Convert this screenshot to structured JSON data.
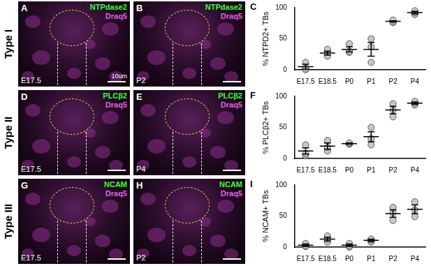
{
  "row_labels": [
    "Type I",
    "Type II",
    "Type III"
  ],
  "image_panels": [
    {
      "letter": "A",
      "stain": "NTPdase2",
      "counterstain": "Draq5",
      "age": "E17.5",
      "scale_bar": "10um"
    },
    {
      "letter": "B",
      "stain": "NTPdase2",
      "counterstain": "Draq5",
      "age": "P2"
    },
    {
      "letter": "D",
      "stain": "PLCβ2",
      "counterstain": "Draq5",
      "age": "E17.5"
    },
    {
      "letter": "E",
      "stain": "PLCβ2",
      "counterstain": "Draq5",
      "age": "P4"
    },
    {
      "letter": "G",
      "stain": "NCAM",
      "counterstain": "Draq5",
      "age": "E17.5"
    },
    {
      "letter": "H",
      "stain": "NCAM",
      "counterstain": "Draq5",
      "age": "P2"
    }
  ],
  "chart_data": [
    {
      "type": "scatter",
      "panel": "C",
      "y_label": "% NTPD2+ TBs",
      "categories": [
        "E17.5",
        "E18.5",
        "P0",
        "P1",
        "P2",
        "P4"
      ],
      "values": [
        5,
        27,
        33,
        33,
        78,
        92
      ],
      "sem": [
        4,
        3,
        4,
        11,
        1,
        2
      ],
      "points": [
        [
          0,
          3,
          12
        ],
        [
          22,
          28,
          33
        ],
        [
          28,
          30,
          42
        ],
        [
          12,
          37,
          50
        ],
        [
          76,
          77,
          80
        ],
        [
          89,
          92,
          95
        ]
      ],
      "color": "#c8c8c8",
      "marker": "circle",
      "ylim": [
        0,
        100
      ],
      "yticks": [
        0,
        50,
        100
      ],
      "grid": false
    },
    {
      "type": "scatter",
      "panel": "F",
      "y_label": "% PLCβ2+ TBs",
      "categories": [
        "E17.5",
        "E18.5",
        "P0",
        "P1",
        "P2",
        "P4"
      ],
      "values": [
        12,
        20,
        24,
        35,
        78,
        89
      ],
      "sem": [
        5,
        5,
        1,
        8,
        6,
        2
      ],
      "points": [
        [
          5,
          8,
          22
        ],
        [
          12,
          18,
          29
        ],
        [
          23,
          24,
          25
        ],
        [
          22,
          32,
          50
        ],
        [
          67,
          78,
          88
        ],
        [
          86,
          89,
          92
        ]
      ],
      "color": "#c8c8c8",
      "marker": "circle",
      "ylim": [
        0,
        100
      ],
      "yticks": [
        0,
        50,
        100
      ],
      "grid": false
    },
    {
      "type": "scatter",
      "panel": "I",
      "y_label": "% NCAM+ TBs",
      "categories": [
        "E17.5",
        "E18.5",
        "P0",
        "P1",
        "P2",
        "P4"
      ],
      "values": [
        3,
        13,
        3,
        11,
        54,
        61
      ],
      "sem": [
        2,
        3,
        2,
        2,
        6,
        7
      ],
      "points": [
        [
          1,
          2,
          6
        ],
        [
          8,
          13,
          18
        ],
        [
          0,
          2,
          6
        ],
        [
          8,
          11,
          13
        ],
        [
          43,
          55,
          64
        ],
        [
          49,
          60,
          73
        ]
      ],
      "color": "#c8c8c8",
      "marker": "circle",
      "ylim": [
        0,
        100
      ],
      "yticks": [
        0,
        50,
        100
      ],
      "grid": false
    }
  ]
}
